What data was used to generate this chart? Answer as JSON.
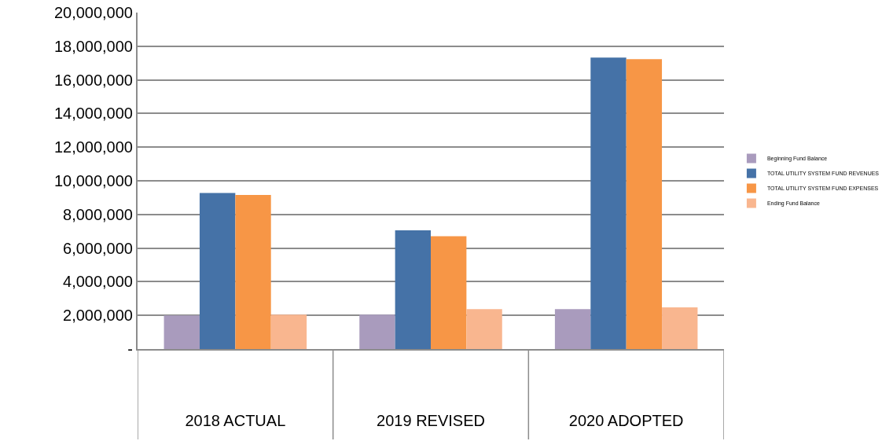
{
  "chart_data": {
    "type": "bar",
    "categories": [
      "2018 ACTUAL",
      "2019 REVISED",
      "2020 ADOPTED"
    ],
    "series": [
      {
        "name": "Beginning Fund Balance",
        "color": "#a99bbd",
        "values": [
          2000000,
          2040000,
          2370000
        ]
      },
      {
        "name": "TOTAL UTILITY SYSTEM FUND REVENUES",
        "color": "#4572a7",
        "values": [
          9270000,
          7060000,
          17320000
        ]
      },
      {
        "name": "TOTAL UTILITY SYSTEM FUND EXPENSES",
        "color": "#f79646",
        "values": [
          9160000,
          6710000,
          17230000
        ]
      },
      {
        "name": "Ending Fund Balance",
        "color": "#f9b68f",
        "values": [
          2040000,
          2370000,
          2480000
        ]
      }
    ],
    "ylim": [
      0,
      20000000
    ],
    "yticks": [
      {
        "value": 0,
        "label": "-"
      },
      {
        "value": 2000000,
        "label": "2,000,000"
      },
      {
        "value": 4000000,
        "label": "4,000,000"
      },
      {
        "value": 6000000,
        "label": "6,000,000"
      },
      {
        "value": 8000000,
        "label": "8,000,000"
      },
      {
        "value": 10000000,
        "label": "10,000,000"
      },
      {
        "value": 12000000,
        "label": "12,000,000"
      },
      {
        "value": 14000000,
        "label": "14,000,000"
      },
      {
        "value": 16000000,
        "label": "16,000,000"
      },
      {
        "value": 18000000,
        "label": "18,000,000"
      },
      {
        "value": 20000000,
        "label": "20,000,000"
      }
    ],
    "grid": "y",
    "legend": "right"
  }
}
